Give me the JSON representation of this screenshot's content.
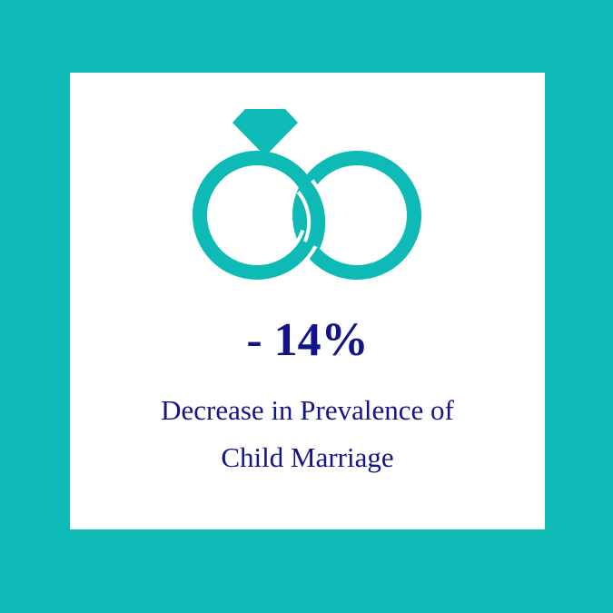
{
  "stat": "- 14%",
  "caption": [
    "Decrease in Prevalence of",
    "Child Marriage"
  ]
}
